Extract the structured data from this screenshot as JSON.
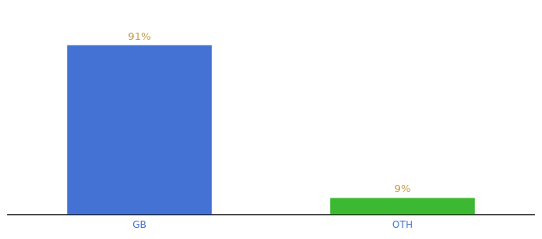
{
  "chart_data": {
    "type": "bar",
    "categories": [
      "GB",
      "OTH"
    ],
    "values": [
      91,
      9
    ],
    "value_labels": [
      "91%",
      "9%"
    ],
    "colors": [
      "#4472d4",
      "#3cb832"
    ],
    "ylim": [
      0,
      105
    ],
    "grid": false,
    "data_labels": true,
    "tick_labels": "x"
  }
}
